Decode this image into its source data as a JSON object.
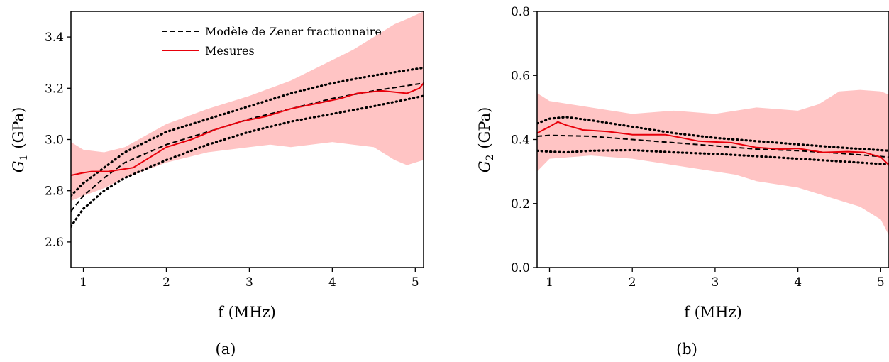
{
  "colors": {
    "measure": "#e8000b",
    "band": "#ffc4c4",
    "model": "#000000"
  },
  "legend": {
    "model_label": "Modèle de Zener fractionnaire",
    "measure_label": "Mesures"
  },
  "chart_data": [
    {
      "type": "line",
      "panel_label": "(a)",
      "xlabel": "f (MHz)",
      "ylabel_symbol": "G",
      "ylabel_sub": "1",
      "ylabel_unit": "(GPa)",
      "xlim": [
        0.85,
        5.1
      ],
      "ylim": [
        2.5,
        3.5
      ],
      "xticks": [
        1,
        2,
        3,
        4,
        5
      ],
      "xtick_labels": [
        "1",
        "2",
        "3",
        "4",
        "5"
      ],
      "yticks": [
        2.6,
        2.8,
        3.0,
        3.2,
        3.4
      ],
      "ytick_labels": [
        "2.6",
        "2.8",
        "3.0",
        "3.2",
        "3.4"
      ],
      "legend_position": "top-right",
      "series": [
        {
          "name": "Modèle de Zener fractionnaire",
          "style": "dashed",
          "x": [
            0.85,
            1.0,
            1.25,
            1.5,
            2.0,
            2.5,
            3.0,
            3.5,
            4.0,
            4.5,
            5.1
          ],
          "y": [
            2.72,
            2.78,
            2.85,
            2.91,
            2.98,
            3.03,
            3.08,
            3.12,
            3.16,
            3.19,
            3.22
          ]
        },
        {
          "style": "dotted",
          "x": [
            0.85,
            1.0,
            1.25,
            1.5,
            2.0,
            2.5,
            3.0,
            3.5,
            4.0,
            4.5,
            5.1
          ],
          "y": [
            2.78,
            2.83,
            2.89,
            2.95,
            3.03,
            3.08,
            3.13,
            3.18,
            3.22,
            3.25,
            3.28
          ]
        },
        {
          "style": "dotted",
          "x": [
            0.85,
            1.0,
            1.25,
            1.5,
            2.0,
            2.5,
            3.0,
            3.5,
            4.0,
            4.5,
            5.1
          ],
          "y": [
            2.66,
            2.73,
            2.8,
            2.85,
            2.92,
            2.98,
            3.03,
            3.07,
            3.1,
            3.13,
            3.17
          ]
        },
        {
          "name": "Mesures",
          "style": "solid",
          "x": [
            0.85,
            1.0,
            1.1,
            1.3,
            1.6,
            1.8,
            2.0,
            2.3,
            2.6,
            2.9,
            3.2,
            3.5,
            3.8,
            4.1,
            4.3,
            4.6,
            4.9,
            5.05,
            5.1
          ],
          "y": [
            2.86,
            2.87,
            2.875,
            2.875,
            2.89,
            2.93,
            2.97,
            3.0,
            3.04,
            3.07,
            3.09,
            3.12,
            3.14,
            3.16,
            3.18,
            3.19,
            3.18,
            3.2,
            3.22
          ]
        }
      ],
      "band": {
        "x": [
          0.85,
          1.0,
          1.25,
          1.5,
          2.0,
          2.5,
          3.0,
          3.25,
          3.5,
          4.0,
          4.25,
          4.5,
          4.75,
          4.9,
          5.1
        ],
        "upper": [
          2.99,
          2.96,
          2.95,
          2.97,
          3.06,
          3.12,
          3.17,
          3.2,
          3.23,
          3.31,
          3.35,
          3.4,
          3.45,
          3.47,
          3.5
        ],
        "lower": [
          2.76,
          2.78,
          2.81,
          2.85,
          2.91,
          2.95,
          2.97,
          2.98,
          2.97,
          2.99,
          2.98,
          2.97,
          2.92,
          2.9,
          2.92
        ]
      }
    },
    {
      "type": "line",
      "panel_label": "(b)",
      "xlabel": "f (MHz)",
      "ylabel_symbol": "G",
      "ylabel_sub": "2",
      "ylabel_unit": "(GPa)",
      "xlim": [
        0.85,
        5.1
      ],
      "ylim": [
        0.0,
        0.8
      ],
      "xticks": [
        1,
        2,
        3,
        4,
        5
      ],
      "xtick_labels": [
        "1",
        "2",
        "3",
        "4",
        "5"
      ],
      "yticks": [
        0.0,
        0.2,
        0.4,
        0.6,
        0.8
      ],
      "ytick_labels": [
        "0.0",
        "0.2",
        "0.4",
        "0.6",
        "0.8"
      ],
      "series": [
        {
          "style": "dashed",
          "x": [
            0.85,
            1.0,
            1.5,
            2.0,
            2.5,
            3.0,
            3.5,
            4.0,
            4.5,
            5.1
          ],
          "y": [
            0.41,
            0.413,
            0.41,
            0.4,
            0.39,
            0.38,
            0.37,
            0.365,
            0.357,
            0.345
          ]
        },
        {
          "style": "dotted",
          "x": [
            0.85,
            1.0,
            1.2,
            1.5,
            2.0,
            2.5,
            3.0,
            3.5,
            4.0,
            4.5,
            5.1
          ],
          "y": [
            0.45,
            0.465,
            0.47,
            0.46,
            0.44,
            0.42,
            0.405,
            0.395,
            0.385,
            0.375,
            0.365
          ]
        },
        {
          "style": "dotted",
          "x": [
            0.85,
            1.0,
            1.2,
            1.5,
            2.0,
            2.5,
            3.0,
            3.5,
            4.0,
            4.5,
            5.1
          ],
          "y": [
            0.365,
            0.362,
            0.36,
            0.365,
            0.367,
            0.36,
            0.355,
            0.348,
            0.34,
            0.332,
            0.322
          ]
        },
        {
          "style": "solid",
          "x": [
            0.85,
            1.0,
            1.1,
            1.2,
            1.4,
            1.7,
            2.0,
            2.4,
            2.8,
            3.2,
            3.5,
            3.8,
            4.0,
            4.3,
            4.6,
            4.8,
            5.0,
            5.1
          ],
          "y": [
            0.42,
            0.44,
            0.455,
            0.445,
            0.43,
            0.425,
            0.415,
            0.415,
            0.395,
            0.39,
            0.375,
            0.37,
            0.372,
            0.36,
            0.362,
            0.36,
            0.345,
            0.32
          ]
        }
      ],
      "band": {
        "x": [
          0.85,
          1.0,
          1.5,
          2.0,
          2.5,
          3.0,
          3.25,
          3.5,
          4.0,
          4.25,
          4.5,
          4.75,
          5.0,
          5.1
        ],
        "upper": [
          0.545,
          0.52,
          0.5,
          0.48,
          0.49,
          0.48,
          0.49,
          0.5,
          0.49,
          0.51,
          0.55,
          0.555,
          0.55,
          0.54
        ],
        "lower": [
          0.3,
          0.34,
          0.35,
          0.34,
          0.32,
          0.3,
          0.29,
          0.27,
          0.25,
          0.23,
          0.21,
          0.19,
          0.15,
          0.1
        ]
      }
    }
  ]
}
